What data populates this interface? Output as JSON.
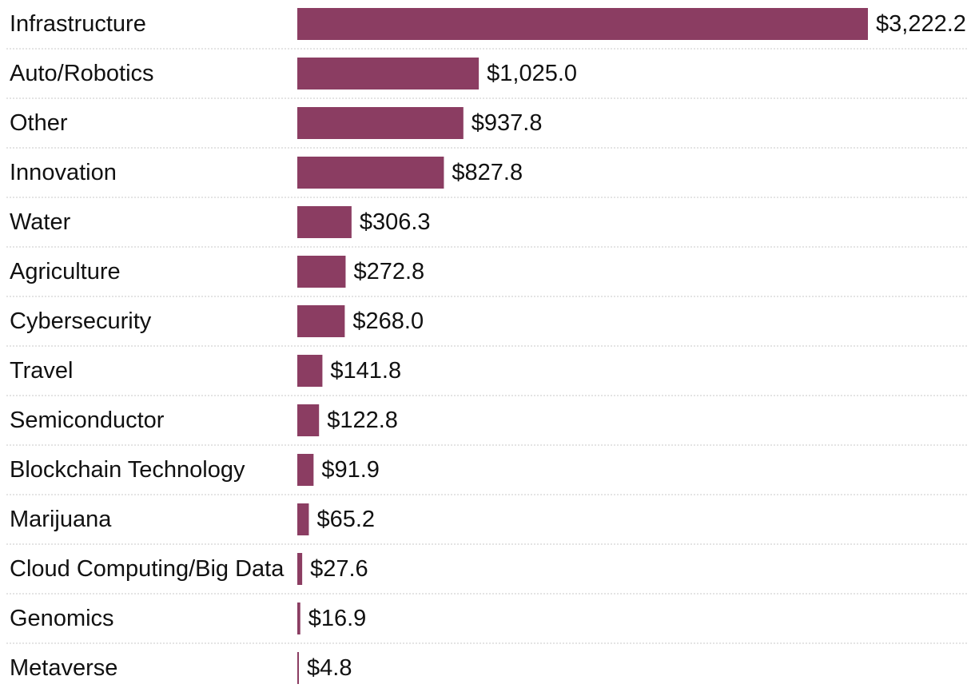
{
  "chart_data": {
    "type": "bar",
    "orientation": "horizontal",
    "categories": [
      "Infrastructure",
      "Auto/Robotics",
      "Other",
      "Innovation",
      "Water",
      "Agriculture",
      "Cybersecurity",
      "Travel",
      "Semiconductor",
      "Blockchain Technology",
      "Marijuana",
      "Cloud Computing/Big Data",
      "Genomics",
      "Metaverse"
    ],
    "values": [
      3222.2,
      1025.0,
      937.8,
      827.8,
      306.3,
      272.8,
      268.0,
      141.8,
      122.8,
      91.9,
      65.2,
      27.6,
      16.9,
      4.8
    ],
    "value_labels": [
      "$3,222.2",
      "$1,025.0",
      "$937.8",
      "$827.8",
      "$306.3",
      "$272.8",
      "$268.0",
      "$141.8",
      "$122.8",
      "$91.9",
      "$65.2",
      "$27.6",
      "$16.9",
      "$4.8"
    ],
    "title": "",
    "xlabel": "",
    "ylabel": "",
    "grid": false,
    "row_separators": true,
    "bar_color": "#8b3d62",
    "separator_color": "#c8c8c8"
  }
}
